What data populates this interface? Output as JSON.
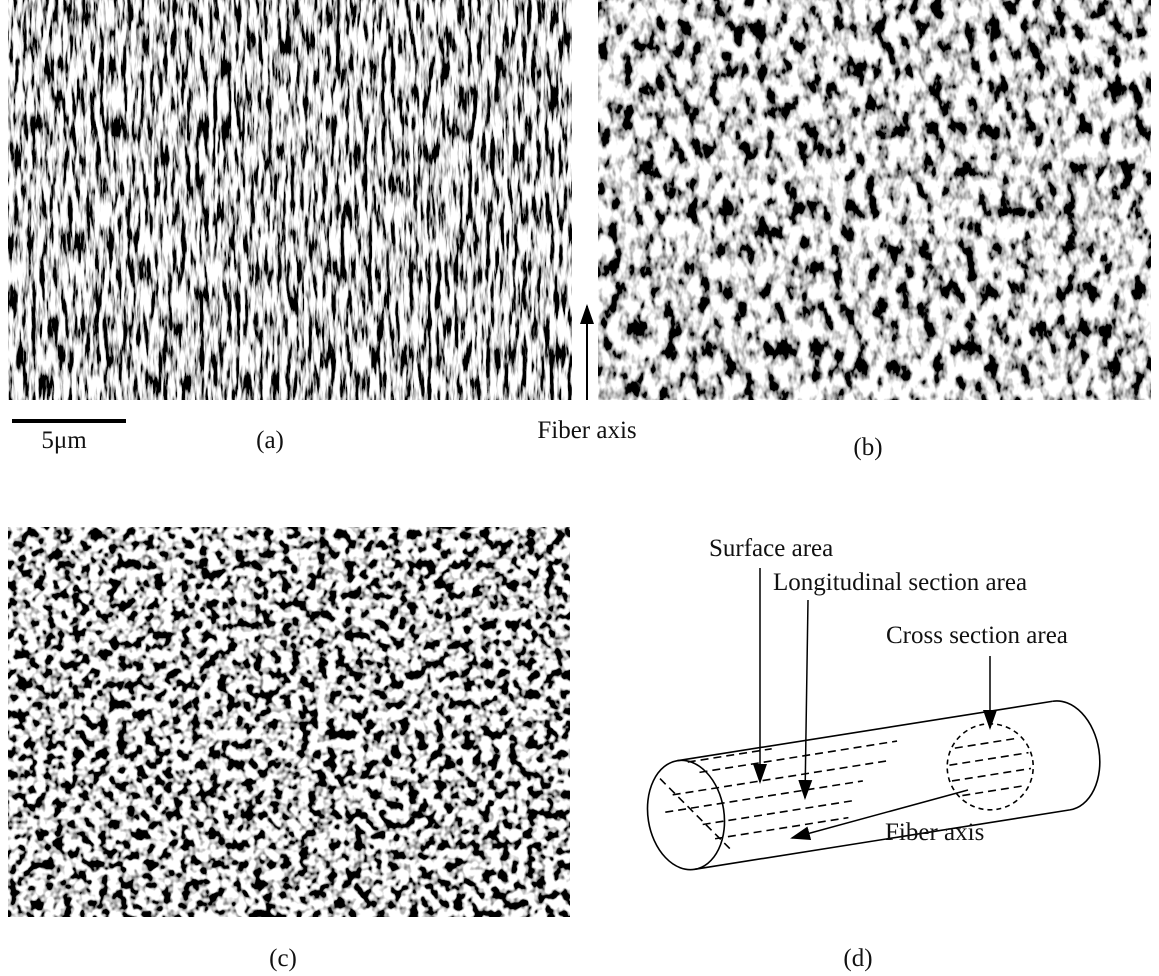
{
  "panels": {
    "a": {
      "label": "(a)"
    },
    "b": {
      "label": "(b)"
    },
    "c": {
      "label": "(c)"
    },
    "d": {
      "label": "(d)"
    }
  },
  "scale_bar": {
    "label": "5μm"
  },
  "fiber_axis_top": "Fiber axis",
  "diagram": {
    "surface": "Surface area",
    "longitudinal": "Longitudinal section area",
    "cross": "Cross section area",
    "fiber_axis": "Fiber axis"
  }
}
